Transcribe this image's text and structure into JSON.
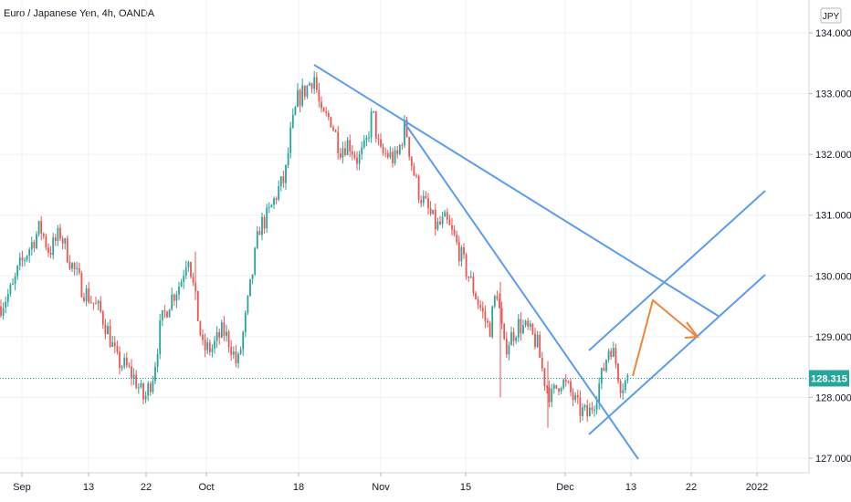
{
  "header": {
    "title": "Euro / Japanese Yen, 4h, OANDA"
  },
  "axis": {
    "currency": "JPY"
  },
  "colors": {
    "up": "#26a69a",
    "down": "#ef5350",
    "trendline": "#5b9cf0",
    "arrow": "#f0843a",
    "current_price_bg": "#26a69a",
    "grid": "#eef1f5"
  },
  "chart_data": {
    "type": "candlestick",
    "symbol": "Euro / Japanese Yen",
    "interval": "4h",
    "source": "OANDA",
    "x_ticks": [
      "Sep",
      "13",
      "22",
      "Oct",
      "18",
      "Nov",
      "15",
      "Dec",
      "13",
      "22",
      "2022"
    ],
    "y_ticks": [
      "134.000",
      "133.000",
      "132.000",
      "131.000",
      "130.000",
      "129.000",
      "128.000",
      "127.000"
    ],
    "ylim": [
      126.9,
      134.3
    ],
    "current_price": "128.315",
    "price_path": [
      [
        0,
        129.5
      ],
      [
        14,
        129.8
      ],
      [
        20,
        130.1
      ],
      [
        30,
        130.4
      ],
      [
        44,
        130.8
      ],
      [
        54,
        130.4
      ],
      [
        66,
        130.7
      ],
      [
        78,
        130.2
      ],
      [
        90,
        129.8
      ],
      [
        100,
        129.6
      ],
      [
        110,
        129.4
      ],
      [
        118,
        129.1
      ],
      [
        128,
        128.6
      ],
      [
        138,
        128.5
      ],
      [
        148,
        128.3
      ],
      [
        158,
        127.95
      ],
      [
        168,
        128.4
      ],
      [
        176,
        129.2
      ],
      [
        186,
        129.6
      ],
      [
        198,
        129.9
      ],
      [
        206,
        130.4
      ],
      [
        214,
        129.6
      ],
      [
        222,
        128.8
      ],
      [
        232,
        128.8
      ],
      [
        244,
        129.1
      ],
      [
        252,
        128.9
      ],
      [
        260,
        128.5
      ],
      [
        268,
        129.2
      ],
      [
        276,
        130.0
      ],
      [
        284,
        130.8
      ],
      [
        294,
        131.0
      ],
      [
        304,
        131.4
      ],
      [
        312,
        131.6
      ],
      [
        318,
        132.3
      ],
      [
        326,
        132.9
      ],
      [
        336,
        133.1
      ],
      [
        344,
        133.3
      ],
      [
        352,
        132.6
      ],
      [
        362,
        132.6
      ],
      [
        372,
        132.1
      ],
      [
        382,
        132.2
      ],
      [
        392,
        131.9
      ],
      [
        400,
        132.1
      ],
      [
        408,
        132.7
      ],
      [
        416,
        132.0
      ],
      [
        424,
        132.0
      ],
      [
        434,
        131.9
      ],
      [
        444,
        132.5
      ],
      [
        450,
        131.9
      ],
      [
        458,
        131.4
      ],
      [
        468,
        131.1
      ],
      [
        478,
        130.8
      ],
      [
        488,
        130.9
      ],
      [
        498,
        130.6
      ],
      [
        508,
        130.2
      ],
      [
        518,
        129.8
      ],
      [
        528,
        129.4
      ],
      [
        536,
        129.1
      ],
      [
        544,
        129.8
      ],
      [
        552,
        128.8
      ],
      [
        560,
        129.0
      ],
      [
        568,
        129.2
      ],
      [
        578,
        129.1
      ],
      [
        588,
        128.9
      ],
      [
        596,
        128.3
      ],
      [
        604,
        128.0
      ],
      [
        614,
        128.3
      ],
      [
        624,
        128.1
      ],
      [
        634,
        127.8
      ],
      [
        644,
        127.7
      ],
      [
        652,
        128.0
      ],
      [
        660,
        128.4
      ],
      [
        668,
        128.9
      ],
      [
        674,
        128.6
      ],
      [
        680,
        128.2
      ],
      [
        688,
        128.3
      ]
    ],
    "annotations": [
      {
        "type": "trendline",
        "from": [
          "Oct 21",
          133.5
        ],
        "to": [
          "Dec 25",
          129.3
        ]
      },
      {
        "type": "trendline",
        "from": [
          "Nov 05",
          132.6
        ],
        "to": [
          "Dec 14",
          126.9
        ]
      },
      {
        "type": "channel_upper",
        "from": [
          "Dec 05",
          128.8
        ],
        "to": [
          "Jan 01",
          131.4
        ]
      },
      {
        "type": "channel_lower",
        "from": [
          "Dec 05",
          127.4
        ],
        "to": [
          "Jan 01",
          130.0
        ]
      },
      {
        "type": "projection_arrow",
        "points": [
          [
            "Dec 13",
            128.3
          ],
          [
            "Dec 16",
            129.6
          ],
          [
            "Dec 22",
            129.0
          ]
        ]
      }
    ]
  }
}
